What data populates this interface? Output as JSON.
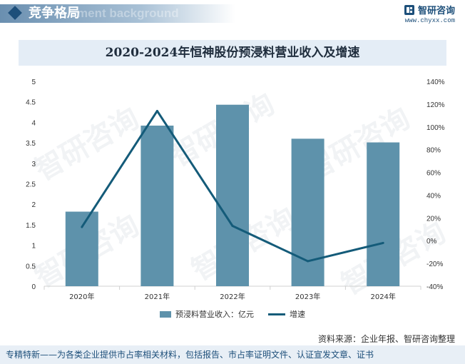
{
  "header": {
    "title": "竞争格局",
    "ghost_text": "ment background"
  },
  "brand": {
    "name": "智研咨询",
    "url": "www.chyxx.com"
  },
  "watermark": {
    "text": "智研咨询"
  },
  "chart_data": {
    "type": "bar+line",
    "title": "2020-2024年恒神股份预浸料营业收入及增速",
    "categories": [
      "2020年",
      "2021年",
      "2022年",
      "2023年",
      "2024年"
    ],
    "series": [
      {
        "name": "预浸料营业收入：亿元",
        "type": "bar",
        "axis": "left",
        "color": "#5e92ab",
        "values": [
          1.82,
          3.92,
          4.43,
          3.6,
          3.51
        ]
      },
      {
        "name": "增速",
        "type": "line",
        "axis": "right",
        "color": "#145b79",
        "values": [
          12,
          114,
          13,
          -18,
          -2
        ]
      }
    ],
    "left_axis": {
      "min": 0,
      "max": 5,
      "ticks": [
        "0",
        "0.5",
        "1",
        "1.5",
        "2",
        "2.5",
        "3",
        "3.5",
        "4",
        "4.5",
        "5"
      ]
    },
    "right_axis": {
      "min": -40,
      "max": 140,
      "ticks": [
        "-40%",
        "-20%",
        "0%",
        "20%",
        "40%",
        "60%",
        "80%",
        "100%",
        "120%",
        "140%"
      ]
    },
    "grid": false,
    "legend_position": "bottom"
  },
  "source": "资料来源：企业年报、智研咨询整理",
  "footer": "专精特新——为各类企业提供市占率相关材料，包括报告、市占率证明文件、认证宣发文章、证书"
}
